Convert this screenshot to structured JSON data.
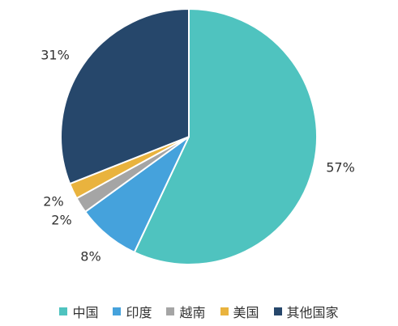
{
  "chart_data": {
    "type": "pie",
    "slices": [
      {
        "name": "中国",
        "value": 57,
        "label": "57%",
        "color": "#4fc3bf"
      },
      {
        "name": "印度",
        "value": 8,
        "label": "8%",
        "color": "#45a2dc"
      },
      {
        "name": "越南",
        "value": 2,
        "label": "2%",
        "color": "#a5a5a5"
      },
      {
        "name": "美国",
        "value": 2,
        "label": "2%",
        "color": "#e9b33e"
      },
      {
        "name": "其他国家",
        "value": 31,
        "label": "31%",
        "color": "#26476b"
      }
    ],
    "legend_position": "bottom",
    "start_angle": "12 o'clock",
    "direction": "clockwise"
  }
}
